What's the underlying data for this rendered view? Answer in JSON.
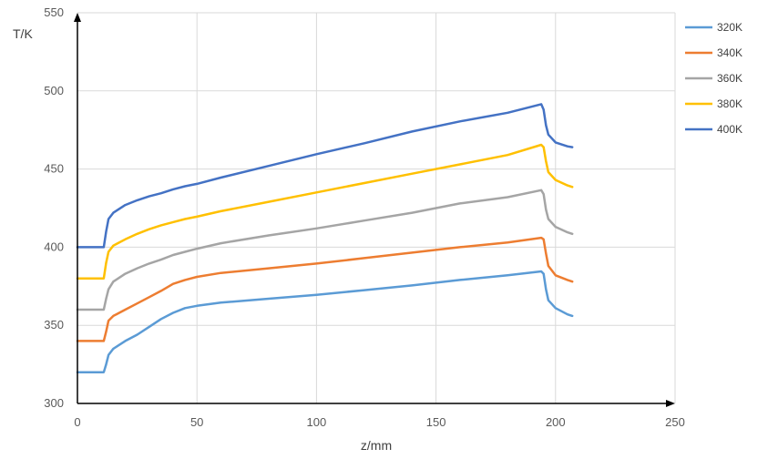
{
  "chart_data": {
    "type": "line",
    "xlabel": "z/mm",
    "ylabel": "T/K",
    "xlim": [
      0,
      250
    ],
    "ylim": [
      300,
      550
    ],
    "x_ticks": [
      0,
      50,
      100,
      150,
      200,
      250
    ],
    "y_ticks": [
      300,
      350,
      400,
      450,
      500,
      550
    ],
    "grid": "on",
    "legend_position": "right",
    "series": [
      {
        "name": "320K",
        "color": "#5b9bd5",
        "points": [
          [
            0,
            320
          ],
          [
            11,
            320
          ],
          [
            12,
            325
          ],
          [
            13,
            331
          ],
          [
            15,
            335
          ],
          [
            20,
            340
          ],
          [
            25,
            344
          ],
          [
            30,
            349
          ],
          [
            35,
            354
          ],
          [
            40,
            358
          ],
          [
            45,
            361
          ],
          [
            50,
            362.5
          ],
          [
            60,
            364.5
          ],
          [
            80,
            367
          ],
          [
            100,
            369.5
          ],
          [
            120,
            372.5
          ],
          [
            140,
            375.5
          ],
          [
            160,
            379
          ],
          [
            180,
            382
          ],
          [
            194,
            384.5
          ],
          [
            195,
            383
          ],
          [
            196,
            373
          ],
          [
            197,
            366
          ],
          [
            200,
            361
          ],
          [
            205,
            357
          ],
          [
            207,
            356
          ]
        ]
      },
      {
        "name": "340K",
        "color": "#ed7d31",
        "points": [
          [
            0,
            340
          ],
          [
            11,
            340
          ],
          [
            12,
            346
          ],
          [
            13,
            353
          ],
          [
            15,
            356
          ],
          [
            20,
            360
          ],
          [
            25,
            364
          ],
          [
            30,
            368
          ],
          [
            35,
            372
          ],
          [
            40,
            376.5
          ],
          [
            45,
            379
          ],
          [
            50,
            381
          ],
          [
            60,
            383.5
          ],
          [
            80,
            386.5
          ],
          [
            100,
            389.5
          ],
          [
            120,
            393
          ],
          [
            140,
            396.5
          ],
          [
            160,
            400
          ],
          [
            180,
            403
          ],
          [
            194,
            406
          ],
          [
            195,
            405
          ],
          [
            196,
            396
          ],
          [
            197,
            388
          ],
          [
            200,
            382
          ],
          [
            205,
            379
          ],
          [
            207,
            378
          ]
        ]
      },
      {
        "name": "360K",
        "color": "#a5a5a5",
        "points": [
          [
            0,
            360
          ],
          [
            11,
            360
          ],
          [
            12,
            367
          ],
          [
            13,
            373
          ],
          [
            15,
            378
          ],
          [
            20,
            383
          ],
          [
            25,
            386.5
          ],
          [
            30,
            389.5
          ],
          [
            35,
            392
          ],
          [
            40,
            395
          ],
          [
            45,
            397
          ],
          [
            50,
            399
          ],
          [
            60,
            402.5
          ],
          [
            80,
            407.5
          ],
          [
            100,
            412
          ],
          [
            120,
            417
          ],
          [
            140,
            422
          ],
          [
            160,
            428
          ],
          [
            180,
            432
          ],
          [
            194,
            436.5
          ],
          [
            195,
            434
          ],
          [
            196,
            424
          ],
          [
            197,
            418
          ],
          [
            200,
            413
          ],
          [
            205,
            409.5
          ],
          [
            207,
            408.5
          ]
        ]
      },
      {
        "name": "380K",
        "color": "#ffc000",
        "points": [
          [
            0,
            380
          ],
          [
            11,
            380
          ],
          [
            12,
            390
          ],
          [
            13,
            397
          ],
          [
            15,
            401
          ],
          [
            20,
            405
          ],
          [
            25,
            408.5
          ],
          [
            30,
            411.5
          ],
          [
            35,
            414
          ],
          [
            40,
            416
          ],
          [
            45,
            418
          ],
          [
            50,
            419.5
          ],
          [
            60,
            423
          ],
          [
            80,
            429
          ],
          [
            100,
            435
          ],
          [
            120,
            441
          ],
          [
            140,
            447
          ],
          [
            160,
            453
          ],
          [
            180,
            459
          ],
          [
            194,
            465.5
          ],
          [
            195,
            464
          ],
          [
            196,
            455
          ],
          [
            197,
            448
          ],
          [
            200,
            443
          ],
          [
            205,
            439.5
          ],
          [
            207,
            438.5
          ]
        ]
      },
      {
        "name": "400K",
        "color": "#4472c4",
        "points": [
          [
            0,
            400
          ],
          [
            11,
            400
          ],
          [
            12,
            410
          ],
          [
            13,
            418
          ],
          [
            15,
            422
          ],
          [
            20,
            427
          ],
          [
            25,
            430
          ],
          [
            30,
            432.5
          ],
          [
            35,
            434.5
          ],
          [
            40,
            437
          ],
          [
            45,
            439
          ],
          [
            50,
            440.5
          ],
          [
            60,
            444.5
          ],
          [
            80,
            452
          ],
          [
            100,
            459.5
          ],
          [
            120,
            466.5
          ],
          [
            140,
            474
          ],
          [
            160,
            480.5
          ],
          [
            180,
            486
          ],
          [
            194,
            491.5
          ],
          [
            195,
            488
          ],
          [
            196,
            478
          ],
          [
            197,
            472
          ],
          [
            200,
            467
          ],
          [
            205,
            464.5
          ],
          [
            207,
            464
          ]
        ]
      }
    ]
  }
}
